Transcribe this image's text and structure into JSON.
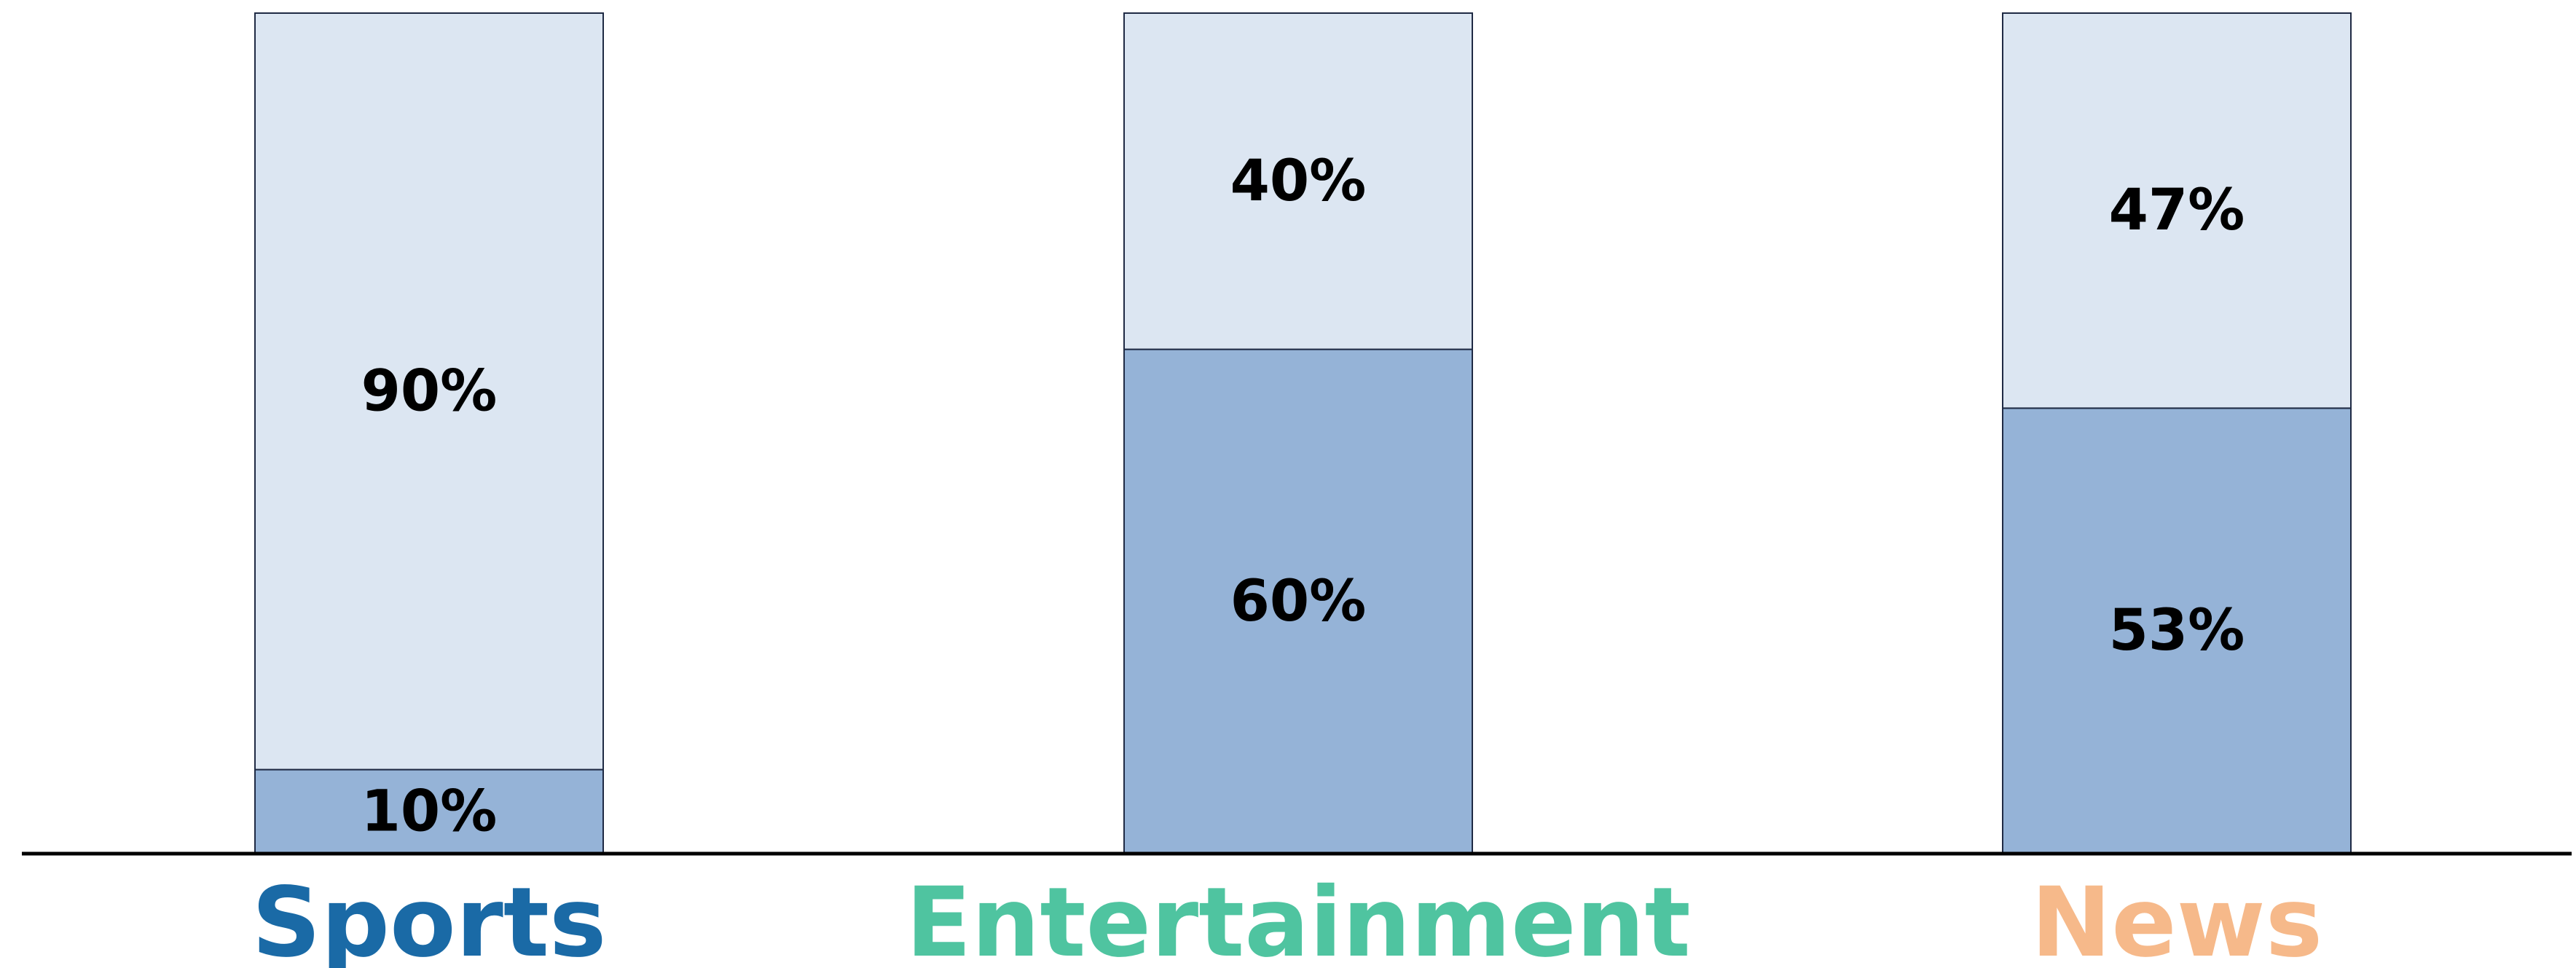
{
  "chart_data": {
    "type": "bar",
    "stacked": true,
    "categories": [
      "Sports",
      "Entertainment",
      "News"
    ],
    "category_colors": [
      "#1a6aa6",
      "#4fc4a0",
      "#f6b98a"
    ],
    "series": [
      {
        "values": [
          10,
          60,
          53
        ],
        "labels": [
          "10%",
          "60%",
          "53%"
        ],
        "color": "#95b3d7"
      },
      {
        "values": [
          90,
          40,
          47
        ],
        "labels": [
          "90%",
          "40%",
          "47%"
        ],
        "color": "#dce6f2"
      }
    ],
    "ylim": [
      0,
      100
    ],
    "grid": false,
    "legend": "none",
    "axis_color": "#000000",
    "bar_border_color": "#1f2a44",
    "label_color": "#000000"
  }
}
